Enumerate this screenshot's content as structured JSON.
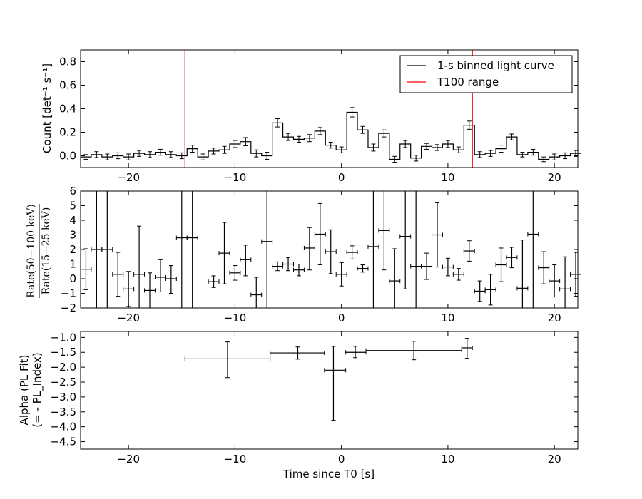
{
  "chart_data": [
    {
      "type": "line",
      "xlabel": "",
      "ylabel": "Count [det⁻¹ s⁻¹]",
      "xlim": [
        -24.5,
        22.2
      ],
      "ylim": [
        -0.1,
        0.9
      ],
      "xticks": [
        "−20",
        "−10",
        "0",
        "10",
        "20"
      ],
      "xtick_values": [
        -20,
        -10,
        0,
        10,
        20
      ],
      "yticks": [
        "0.0",
        "0.2",
        "0.4",
        "0.6",
        "0.8"
      ],
      "ytick_values": [
        0.0,
        0.2,
        0.4,
        0.6,
        0.8
      ],
      "legend": {
        "placement": "top-right",
        "entries": [
          {
            "label": "1-s binned light curve",
            "color": "#000000"
          },
          {
            "label": "T100 range",
            "color": "#ff0000"
          }
        ]
      },
      "series": [
        {
          "name": "1-s binned light curve",
          "x_start": -24.5,
          "bin_width": 1,
          "values": [
            -0.01,
            0.01,
            -0.01,
            0.0,
            -0.01,
            0.02,
            0.01,
            0.03,
            0.01,
            0.0,
            0.06,
            -0.01,
            0.04,
            0.05,
            0.1,
            0.12,
            0.02,
            0.0,
            0.28,
            0.16,
            0.14,
            0.15,
            0.21,
            0.09,
            0.05,
            0.37,
            0.22,
            0.07,
            0.19,
            -0.03,
            0.1,
            -0.02,
            0.08,
            0.07,
            0.1,
            0.05,
            0.26,
            0.01,
            0.02,
            0.06,
            0.16,
            0.01,
            0.03,
            -0.03,
            -0.01,
            0.0,
            0.02
          ],
          "errors": [
            0.02,
            0.025,
            0.025,
            0.025,
            0.025,
            0.025,
            0.025,
            0.025,
            0.025,
            0.025,
            0.03,
            0.025,
            0.025,
            0.03,
            0.03,
            0.035,
            0.03,
            0.03,
            0.035,
            0.03,
            0.025,
            0.03,
            0.03,
            0.025,
            0.025,
            0.04,
            0.03,
            0.03,
            0.03,
            0.025,
            0.03,
            0.025,
            0.025,
            0.025,
            0.03,
            0.025,
            0.035,
            0.025,
            0.025,
            0.03,
            0.025,
            0.02,
            0.025,
            0.02,
            0.025,
            0.025,
            0.025
          ]
        }
      ],
      "vlines": [
        {
          "name": "T100 range",
          "x": -14.7,
          "color": "#ff0000"
        },
        {
          "name": "T100 range",
          "x": 12.3,
          "color": "#ff0000"
        }
      ]
    },
    {
      "type": "scatter",
      "xlabel": "",
      "ylabel_top": "Rate(50−100 keV)",
      "ylabel_bottom": "Rate(15−25 keV)",
      "xlim": [
        -24.5,
        22.2
      ],
      "ylim": [
        -2,
        6
      ],
      "xticks": [
        "−20",
        "−10",
        "0",
        "10",
        "20"
      ],
      "xtick_values": [
        -20,
        -10,
        0,
        10,
        20
      ],
      "yticks": [
        "−2",
        "−1",
        "0",
        "1",
        "2",
        "3",
        "4",
        "5",
        "6"
      ],
      "ytick_values": [
        -2,
        -1,
        0,
        1,
        2,
        3,
        4,
        5,
        6
      ],
      "points": [
        {
          "x": -24,
          "y": 0.65,
          "xerr": 0.5,
          "yerr_low": 1.4,
          "yerr_high": 1.4
        },
        {
          "x": -23,
          "y": 2.0,
          "xerr": 0.5,
          "yerr_low": 6,
          "yerr_high": 6
        },
        {
          "x": -22,
          "y": 2.0,
          "xerr": 0.5,
          "yerr_low": 6,
          "yerr_high": 6
        },
        {
          "x": -21,
          "y": 0.3,
          "xerr": 0.5,
          "yerr_low": 1.5,
          "yerr_high": 1.5
        },
        {
          "x": -20,
          "y": -0.7,
          "xerr": 0.5,
          "yerr_low": 1.2,
          "yerr_high": 1.2
        },
        {
          "x": -19,
          "y": 0.3,
          "xerr": 0.5,
          "yerr_low": 2.3,
          "yerr_high": 3.3
        },
        {
          "x": -18,
          "y": -0.8,
          "xerr": 0.5,
          "yerr_low": 1.2,
          "yerr_high": 1.2
        },
        {
          "x": -17,
          "y": 0.1,
          "xerr": 0.5,
          "yerr_low": 1.0,
          "yerr_high": 1.2
        },
        {
          "x": -16,
          "y": 0.0,
          "xerr": 0.5,
          "yerr_low": 1.0,
          "yerr_high": 0.9
        },
        {
          "x": -15,
          "y": 2.8,
          "xerr": 0.5,
          "yerr_low": 6,
          "yerr_high": 6
        },
        {
          "x": -14,
          "y": 2.8,
          "xerr": 0.5,
          "yerr_low": 6,
          "yerr_high": 6
        },
        {
          "x": -12,
          "y": -0.2,
          "xerr": 0.5,
          "yerr_low": 0.4,
          "yerr_high": 0.4
        },
        {
          "x": -11,
          "y": 1.75,
          "xerr": 0.5,
          "yerr_low": 2.1,
          "yerr_high": 2.1
        },
        {
          "x": -10,
          "y": 0.4,
          "xerr": 0.5,
          "yerr_low": 0.5,
          "yerr_high": 0.5
        },
        {
          "x": -9,
          "y": 1.3,
          "xerr": 0.5,
          "yerr_low": 1.1,
          "yerr_high": 1.0
        },
        {
          "x": -8,
          "y": -1.1,
          "xerr": 0.5,
          "yerr_low": 0.9,
          "yerr_high": 1.2
        },
        {
          "x": -7,
          "y": 2.55,
          "xerr": 0.5,
          "yerr_low": 6,
          "yerr_high": 6
        },
        {
          "x": -6,
          "y": 0.85,
          "xerr": 0.5,
          "yerr_low": 0.3,
          "yerr_high": 0.3
        },
        {
          "x": -5,
          "y": 1.0,
          "xerr": 0.5,
          "yerr_low": 0.45,
          "yerr_high": 0.45
        },
        {
          "x": -4,
          "y": 0.6,
          "xerr": 0.5,
          "yerr_low": 0.4,
          "yerr_high": 0.4
        },
        {
          "x": -3,
          "y": 2.1,
          "xerr": 0.5,
          "yerr_low": 1.5,
          "yerr_high": 1.4
        },
        {
          "x": -2,
          "y": 3.05,
          "xerr": 0.5,
          "yerr_low": 2.1,
          "yerr_high": 2.1
        },
        {
          "x": -1,
          "y": 1.85,
          "xerr": 0.5,
          "yerr_low": 1.5,
          "yerr_high": 1.5
        },
        {
          "x": 0,
          "y": 0.3,
          "xerr": 0.5,
          "yerr_low": 0.8,
          "yerr_high": 0.8
        },
        {
          "x": 1,
          "y": 1.8,
          "xerr": 0.5,
          "yerr_low": 0.45,
          "yerr_high": 0.45
        },
        {
          "x": 2,
          "y": 0.7,
          "xerr": 0.5,
          "yerr_low": 0.25,
          "yerr_high": 0.25
        },
        {
          "x": 3,
          "y": 2.2,
          "xerr": 0.5,
          "yerr_low": 6,
          "yerr_high": 6
        },
        {
          "x": 4,
          "y": 3.3,
          "xerr": 0.5,
          "yerr_low": 2.7,
          "yerr_high": 2.7
        },
        {
          "x": 5,
          "y": -0.15,
          "xerr": 0.5,
          "yerr_low": 2.2,
          "yerr_high": 2.2
        },
        {
          "x": 6,
          "y": 2.9,
          "xerr": 0.5,
          "yerr_low": 3.6,
          "yerr_high": 3.6
        },
        {
          "x": 7,
          "y": 0.85,
          "xerr": 0.5,
          "yerr_low": 6,
          "yerr_high": 6
        },
        {
          "x": 8,
          "y": 0.85,
          "xerr": 0.5,
          "yerr_low": 0.9,
          "yerr_high": 0.9
        },
        {
          "x": 9,
          "y": 3.0,
          "xerr": 0.5,
          "yerr_low": 2.2,
          "yerr_high": 2.2
        },
        {
          "x": 10,
          "y": 0.8,
          "xerr": 0.5,
          "yerr_low": 0.6,
          "yerr_high": 0.6
        },
        {
          "x": 11,
          "y": 0.3,
          "xerr": 0.5,
          "yerr_low": 0.4,
          "yerr_high": 0.4
        },
        {
          "x": 12,
          "y": 1.9,
          "xerr": 0.5,
          "yerr_low": 0.7,
          "yerr_high": 0.7
        },
        {
          "x": 13,
          "y": -0.85,
          "xerr": 0.5,
          "yerr_low": 0.7,
          "yerr_high": 0.7
        },
        {
          "x": 14,
          "y": -0.75,
          "xerr": 0.5,
          "yerr_low": 1.05,
          "yerr_high": 1.05
        },
        {
          "x": 15,
          "y": 0.95,
          "xerr": 0.5,
          "yerr_low": 1.15,
          "yerr_high": 1.15
        },
        {
          "x": 16,
          "y": 1.45,
          "xerr": 0.5,
          "yerr_low": 0.7,
          "yerr_high": 0.7
        },
        {
          "x": 17,
          "y": -0.65,
          "xerr": 0.5,
          "yerr_low": 3.3,
          "yerr_high": 3.3
        },
        {
          "x": 18,
          "y": 3.05,
          "xerr": 0.5,
          "yerr_low": 6,
          "yerr_high": 6
        },
        {
          "x": 19,
          "y": 0.75,
          "xerr": 0.5,
          "yerr_low": 1.1,
          "yerr_high": 1.1
        },
        {
          "x": 20,
          "y": -0.15,
          "xerr": 0.5,
          "yerr_low": 1.1,
          "yerr_high": 1.1
        },
        {
          "x": 21,
          "y": -0.7,
          "xerr": 0.5,
          "yerr_low": 2.2,
          "yerr_high": 2.2
        },
        {
          "x": 22,
          "y": 0.3,
          "xerr": 0.5,
          "yerr_low": 1.5,
          "yerr_high": 1.5
        }
      ]
    },
    {
      "type": "scatter",
      "xlabel": "Time since T0 [s]",
      "ylabel_line1": "Alpha (PL Fit)",
      "ylabel_line2": "(= - PL_Index)",
      "xlim": [
        -24.5,
        22.2
      ],
      "ylim": [
        -4.75,
        -0.8
      ],
      "xticks": [
        "−20",
        "−10",
        "0",
        "10",
        "20"
      ],
      "xtick_values": [
        -20,
        -10,
        0,
        10,
        20
      ],
      "yticks": [
        "−1.0",
        "−1.5",
        "−2.0",
        "−2.5",
        "−3.0",
        "−3.5",
        "−4.0",
        "−4.5"
      ],
      "ytick_values": [
        -1.0,
        -1.5,
        -2.0,
        -2.5,
        -3.0,
        -3.5,
        -4.0,
        -4.5
      ],
      "points": [
        {
          "x": -10.7,
          "y": -1.72,
          "x_low": -14.7,
          "x_high": -6.7,
          "y_low": -2.35,
          "y_high": -1.15
        },
        {
          "x": -4.1,
          "y": -1.52,
          "x_low": -6.7,
          "x_high": -1.6,
          "y_low": -1.73,
          "y_high": -1.32
        },
        {
          "x": -0.75,
          "y": -2.1,
          "x_low": -1.6,
          "x_high": 0.4,
          "y_low": -3.78,
          "y_high": -1.3
        },
        {
          "x": 1.3,
          "y": -1.5,
          "x_low": 0.4,
          "x_high": 2.3,
          "y_low": -1.68,
          "y_high": -1.3
        },
        {
          "x": 6.8,
          "y": -1.44,
          "x_low": 2.3,
          "x_high": 11.3,
          "y_low": -1.75,
          "y_high": -1.13
        },
        {
          "x": 11.8,
          "y": -1.35,
          "x_low": 11.3,
          "x_high": 12.3,
          "y_low": -1.7,
          "y_high": -1.03
        }
      ]
    }
  ]
}
